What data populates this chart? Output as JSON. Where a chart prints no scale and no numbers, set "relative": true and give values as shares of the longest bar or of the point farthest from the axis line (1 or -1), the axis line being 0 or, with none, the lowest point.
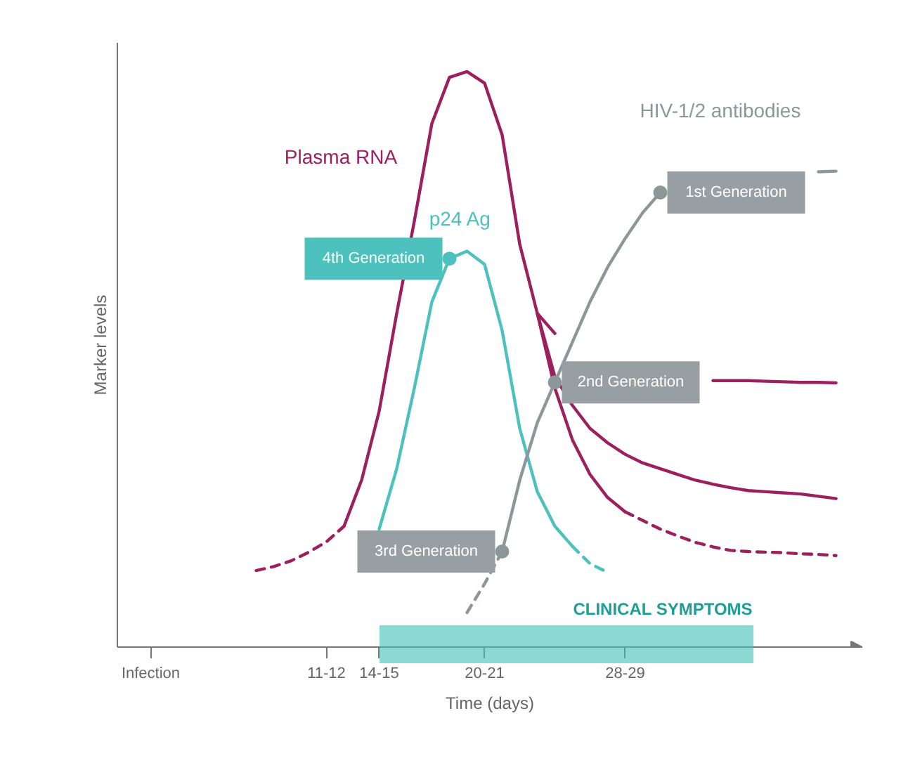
{
  "chart_data": {
    "type": "line",
    "relative": true,
    "xlabel": "Time (days)",
    "ylabel": "Marker levels",
    "categories": [
      null,
      "Infection",
      null,
      null,
      null,
      null,
      null,
      null,
      null,
      null,
      null,
      "11-12",
      null,
      null,
      "14-15",
      null,
      null,
      null,
      null,
      null,
      "20-21",
      null,
      null,
      null,
      null,
      null,
      null,
      null,
      "28-29",
      null,
      null,
      null,
      null,
      null,
      null,
      null,
      null,
      null,
      null,
      null,
      null,
      null
    ],
    "grid": false,
    "series": [
      {
        "color": "#9c1f5e",
        "line_style": "dashed",
        "values": [
          null,
          null,
          null,
          null,
          null,
          null,
          null,
          0.133,
          0.14,
          0.15,
          0.165,
          0.183,
          0.21,
          null,
          null,
          null,
          null,
          null,
          null,
          null,
          null,
          null,
          null,
          null,
          null,
          null,
          null,
          null,
          null,
          null,
          null,
          null,
          null,
          null,
          null,
          null,
          null,
          null,
          null,
          null,
          null,
          null
        ]
      },
      {
        "color": "#9c1f5e",
        "line_style": "solid",
        "values": [
          null,
          null,
          null,
          null,
          null,
          null,
          null,
          null,
          null,
          null,
          null,
          null,
          0.21,
          0.29,
          0.41,
          0.58,
          0.74,
          0.91,
          0.99,
          1.0,
          0.98,
          0.89,
          0.7,
          0.58,
          0.545,
          null,
          null,
          null,
          null,
          null,
          null,
          null,
          null,
          0.463,
          0.463,
          0.463,
          0.462,
          0.461,
          0.46,
          0.46,
          0.459,
          null
        ]
      },
      {
        "color": "#9c1f5e",
        "line_style": "solid",
        "values": [
          null,
          null,
          null,
          null,
          null,
          null,
          null,
          null,
          null,
          null,
          null,
          null,
          null,
          null,
          null,
          null,
          null,
          null,
          null,
          null,
          null,
          null,
          null,
          0.58,
          0.47,
          0.42,
          0.38,
          0.355,
          0.335,
          0.32,
          0.31,
          0.3,
          0.29,
          0.283,
          0.277,
          0.272,
          0.27,
          0.268,
          0.266,
          0.262,
          0.258,
          null
        ]
      },
      {
        "color": "#9c1f5e",
        "line_style": "solid",
        "values": [
          null,
          null,
          null,
          null,
          null,
          null,
          null,
          null,
          null,
          null,
          null,
          null,
          null,
          null,
          null,
          null,
          null,
          null,
          null,
          null,
          null,
          null,
          null,
          0.58,
          0.45,
          0.36,
          0.3,
          0.26,
          0.235,
          null,
          null,
          null,
          null,
          null,
          null,
          null,
          null,
          null,
          null,
          null,
          null,
          null
        ]
      },
      {
        "color": "#9c1f5e",
        "line_style": "dashed",
        "values": [
          null,
          null,
          null,
          null,
          null,
          null,
          null,
          null,
          null,
          null,
          null,
          null,
          null,
          null,
          null,
          null,
          null,
          null,
          null,
          null,
          null,
          null,
          null,
          null,
          null,
          null,
          null,
          null,
          0.235,
          0.22,
          0.205,
          0.193,
          0.182,
          0.174,
          0.168,
          0.166,
          0.165,
          0.164,
          0.162,
          0.161,
          0.159,
          null
        ]
      },
      {
        "color": "#4cc1bd",
        "line_style": "solid",
        "values": [
          null,
          null,
          null,
          null,
          null,
          null,
          null,
          null,
          null,
          null,
          null,
          null,
          null,
          null,
          0.205,
          0.31,
          0.45,
          0.6,
          0.675,
          0.688,
          0.665,
          0.55,
          0.38,
          0.27,
          0.21,
          0.175,
          null,
          null,
          null,
          null,
          null,
          null,
          null,
          null,
          null,
          null,
          null,
          null,
          null,
          null,
          null,
          null
        ]
      },
      {
        "color": "#4cc1bd",
        "line_style": "dashed",
        "values": [
          null,
          null,
          null,
          null,
          null,
          null,
          null,
          null,
          null,
          null,
          null,
          null,
          null,
          null,
          null,
          null,
          null,
          null,
          null,
          null,
          null,
          null,
          null,
          null,
          null,
          0.175,
          0.145,
          0.13,
          null,
          null,
          null,
          null,
          null,
          null,
          null,
          null,
          null,
          null,
          null,
          null,
          null,
          null
        ]
      },
      {
        "color": "#8c9799",
        "line_style": "dashed",
        "values": [
          null,
          null,
          null,
          null,
          null,
          null,
          null,
          null,
          null,
          null,
          null,
          null,
          null,
          null,
          null,
          null,
          null,
          null,
          null,
          0.06,
          0.11,
          0.166,
          null,
          null,
          null,
          null,
          null,
          null,
          null,
          null,
          null,
          null,
          null,
          null,
          null,
          null,
          null,
          null,
          null,
          null,
          null,
          null
        ]
      },
      {
        "color": "#8c9799",
        "line_style": "solid",
        "values": [
          null,
          null,
          null,
          null,
          null,
          null,
          null,
          null,
          null,
          null,
          null,
          null,
          null,
          null,
          null,
          null,
          null,
          null,
          null,
          null,
          null,
          0.166,
          0.29,
          0.39,
          0.46,
          0.53,
          0.6,
          0.66,
          0.71,
          0.755,
          0.79,
          null,
          null,
          null,
          null,
          null,
          null,
          null,
          null,
          0.826,
          0.827,
          null
        ]
      }
    ],
    "annotations": [
      "Plasma RNA",
      "p24 Ag",
      "HIV-1/2 antibodies",
      "4th Generation",
      "3rd Generation",
      "2nd Generation",
      "1st Generation",
      "CLINICAL SYMPTOMS"
    ]
  }
}
